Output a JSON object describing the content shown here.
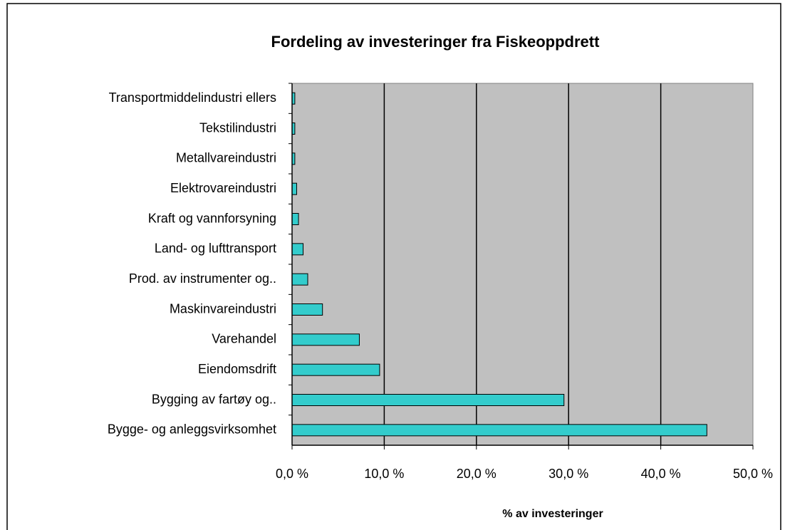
{
  "chart_data": {
    "type": "bar",
    "orientation": "horizontal",
    "title": "Fordeling av investeringer fra Fiskeoppdrett",
    "x_label": "% av investeringer",
    "categories": [
      "Transportmiddelindustri ellers",
      "Tekstilindustri",
      "Metallvareindustri",
      "Elektrovareindustri",
      "Kraft og vannforsyning",
      "Land- og lufttransport",
      "Prod. av instrumenter og..",
      "Maskinvareindustri",
      "Varehandel",
      "Eiendomsdrift",
      "Bygging av fartøy og..",
      "Bygge- og anleggsvirksomhet"
    ],
    "values": [
      0.3,
      0.3,
      0.3,
      0.5,
      0.7,
      1.2,
      1.7,
      3.3,
      7.3,
      9.5,
      29.5,
      45.0
    ],
    "color": "#33cccc",
    "xlim": [
      0,
      50
    ],
    "xticks": [
      {
        "value": 0,
        "label": "0,0 %"
      },
      {
        "value": 10,
        "label": "10,0 %"
      },
      {
        "value": 20,
        "label": "20,0 %"
      },
      {
        "value": 30,
        "label": "30,0 %"
      },
      {
        "value": 40,
        "label": "40,0 %"
      },
      {
        "value": 50,
        "label": "50,0 %"
      }
    ],
    "grid": true
  }
}
